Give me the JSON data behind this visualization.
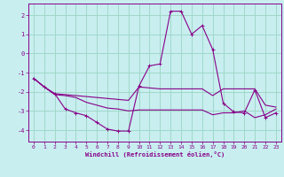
{
  "xlabel": "Windchill (Refroidissement éolien,°C)",
  "background_color": "#c8eef0",
  "grid_color": "#a0d8c8",
  "line_color": "#880088",
  "xlim": [
    -0.5,
    23.5
  ],
  "ylim": [
    -4.6,
    2.6
  ],
  "yticks": [
    -4,
    -3,
    -2,
    -1,
    0,
    1,
    2
  ],
  "xticks": [
    0,
    1,
    2,
    3,
    4,
    5,
    6,
    7,
    8,
    9,
    10,
    11,
    12,
    13,
    14,
    15,
    16,
    17,
    18,
    19,
    20,
    21,
    22,
    23
  ],
  "line1_x": [
    0,
    1,
    2,
    3,
    4,
    5,
    6,
    7,
    8,
    9,
    10,
    11,
    12,
    13,
    14,
    15,
    16,
    17,
    18,
    19,
    20,
    21,
    22,
    23
  ],
  "line1_y": [
    -1.3,
    -1.75,
    -2.1,
    -2.9,
    -3.1,
    -3.25,
    -3.6,
    -3.95,
    -4.05,
    -4.05,
    -1.7,
    -0.65,
    -0.55,
    2.2,
    2.2,
    1.0,
    1.45,
    0.2,
    -2.6,
    -3.05,
    -3.1,
    -1.9,
    -3.35,
    -3.1
  ],
  "line2_x": [
    0,
    1,
    2,
    3,
    4,
    5,
    6,
    7,
    8,
    9,
    10,
    11,
    12,
    13,
    14,
    15,
    16,
    17,
    18,
    19,
    20,
    21,
    22,
    23
  ],
  "line2_y": [
    -1.3,
    -1.75,
    -2.1,
    -2.15,
    -2.2,
    -2.25,
    -2.3,
    -2.35,
    -2.4,
    -2.45,
    -1.75,
    -1.8,
    -1.85,
    -1.85,
    -1.85,
    -1.85,
    -1.85,
    -2.2,
    -1.85,
    -1.85,
    -1.85,
    -1.85,
    -2.7,
    -2.8
  ],
  "line3_x": [
    0,
    1,
    2,
    3,
    4,
    5,
    6,
    7,
    8,
    9,
    10,
    11,
    12,
    13,
    14,
    15,
    16,
    17,
    18,
    19,
    20,
    21,
    22,
    23
  ],
  "line3_y": [
    -1.3,
    -1.75,
    -2.15,
    -2.2,
    -2.3,
    -2.55,
    -2.7,
    -2.85,
    -2.9,
    -3.0,
    -2.95,
    -2.95,
    -2.95,
    -2.95,
    -2.95,
    -2.95,
    -2.95,
    -3.2,
    -3.1,
    -3.1,
    -3.0,
    -3.35,
    -3.2,
    -2.9
  ]
}
